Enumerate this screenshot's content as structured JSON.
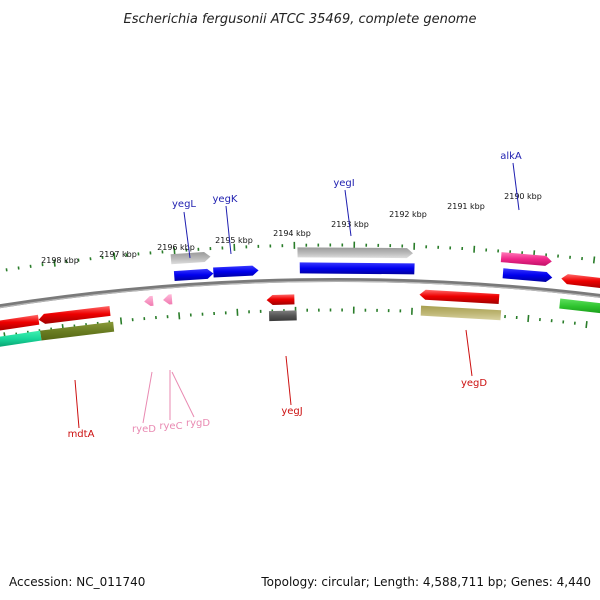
{
  "title": "Escherichia fergusonii ATCC 35469, complete genome",
  "footer": {
    "accession": "Accession: NC_011740",
    "topology": "Topology: circular; Length: 4,588,711 bp; Genes: 4,440"
  },
  "colors": {
    "backbone": "#7f7f7f",
    "tick": "#2a7d2a",
    "label_forward": "#1f1fb0",
    "label_reverse": "#cc1010",
    "label_rna": "#e98ab2"
  },
  "scale_labels": [
    "2198 kbp",
    "2197 kbp",
    "2196 kbp",
    "2195 kbp",
    "2194 kbp",
    "2193 kbp",
    "2192 kbp",
    "2191 kbp",
    "2190 kbp"
  ],
  "genes": [
    {
      "name": "yegL",
      "strand": "+"
    },
    {
      "name": "yegK",
      "strand": "+"
    },
    {
      "name": "yegI",
      "strand": "+"
    },
    {
      "name": "alkA",
      "strand": "+"
    },
    {
      "name": "mdtA",
      "strand": "-"
    },
    {
      "name": "ryeD",
      "strand": "-"
    },
    {
      "name": "ryeC",
      "strand": "-"
    },
    {
      "name": "rygD",
      "strand": "-"
    },
    {
      "name": "yegJ",
      "strand": "-"
    },
    {
      "name": "yegD",
      "strand": "-"
    }
  ]
}
